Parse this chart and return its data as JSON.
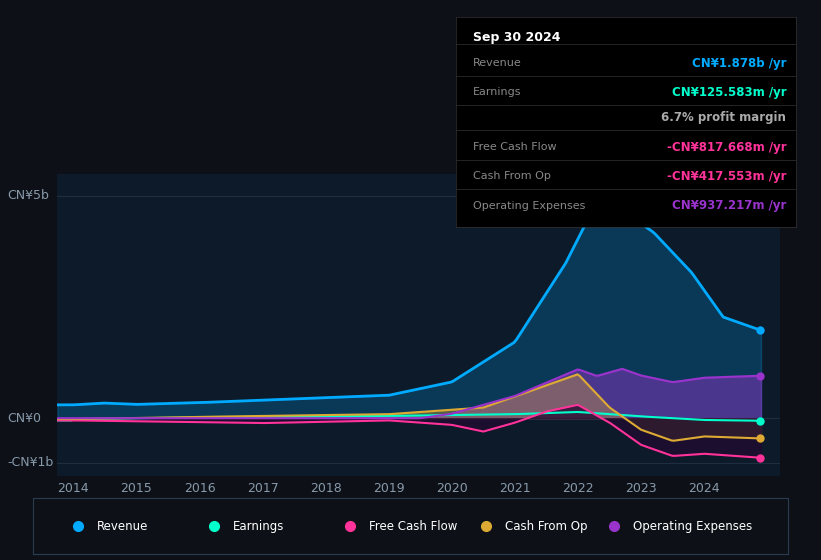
{
  "bg_color": "#0d1117",
  "plot_bg_color": "#0d1a2a",
  "grid_color": "#1e2d40",
  "revenue_color": "#00aaff",
  "earnings_color": "#00ffcc",
  "fcf_color": "#ff3399",
  "cashop_color": "#ddaa33",
  "opex_color": "#9933cc",
  "tooltip_title": "Sep 30 2024",
  "tooltip_rows": [
    [
      "Revenue",
      "CN¥1.878b /yr",
      "#00aaff"
    ],
    [
      "Earnings",
      "CN¥125.583m /yr",
      "#00ffcc"
    ],
    [
      "",
      "6.7% profit margin",
      "#aaaaaa"
    ],
    [
      "Free Cash Flow",
      "-CN¥817.668m /yr",
      "#ff3399"
    ],
    [
      "Cash From Op",
      "-CN¥417.553m /yr",
      "#ff3399"
    ],
    [
      "Operating Expenses",
      "CN¥937.217m /yr",
      "#9933cc"
    ]
  ],
  "legend_items": [
    [
      "Revenue",
      "#00aaff"
    ],
    [
      "Earnings",
      "#00ffcc"
    ],
    [
      "Free Cash Flow",
      "#ff3399"
    ],
    [
      "Cash From Op",
      "#ddaa33"
    ],
    [
      "Operating Expenses",
      "#9933cc"
    ]
  ],
  "xlim": [
    2013.75,
    2025.2
  ],
  "ylim": [
    -1.3,
    5.5
  ],
  "yticks": [
    5.0,
    0.0,
    -1.0
  ],
  "ytick_labels": [
    "CN¥5b",
    "CN¥0",
    "-CN¥1b"
  ],
  "xticks": [
    2014,
    2015,
    2016,
    2017,
    2018,
    2019,
    2020,
    2021,
    2022,
    2023,
    2024
  ]
}
